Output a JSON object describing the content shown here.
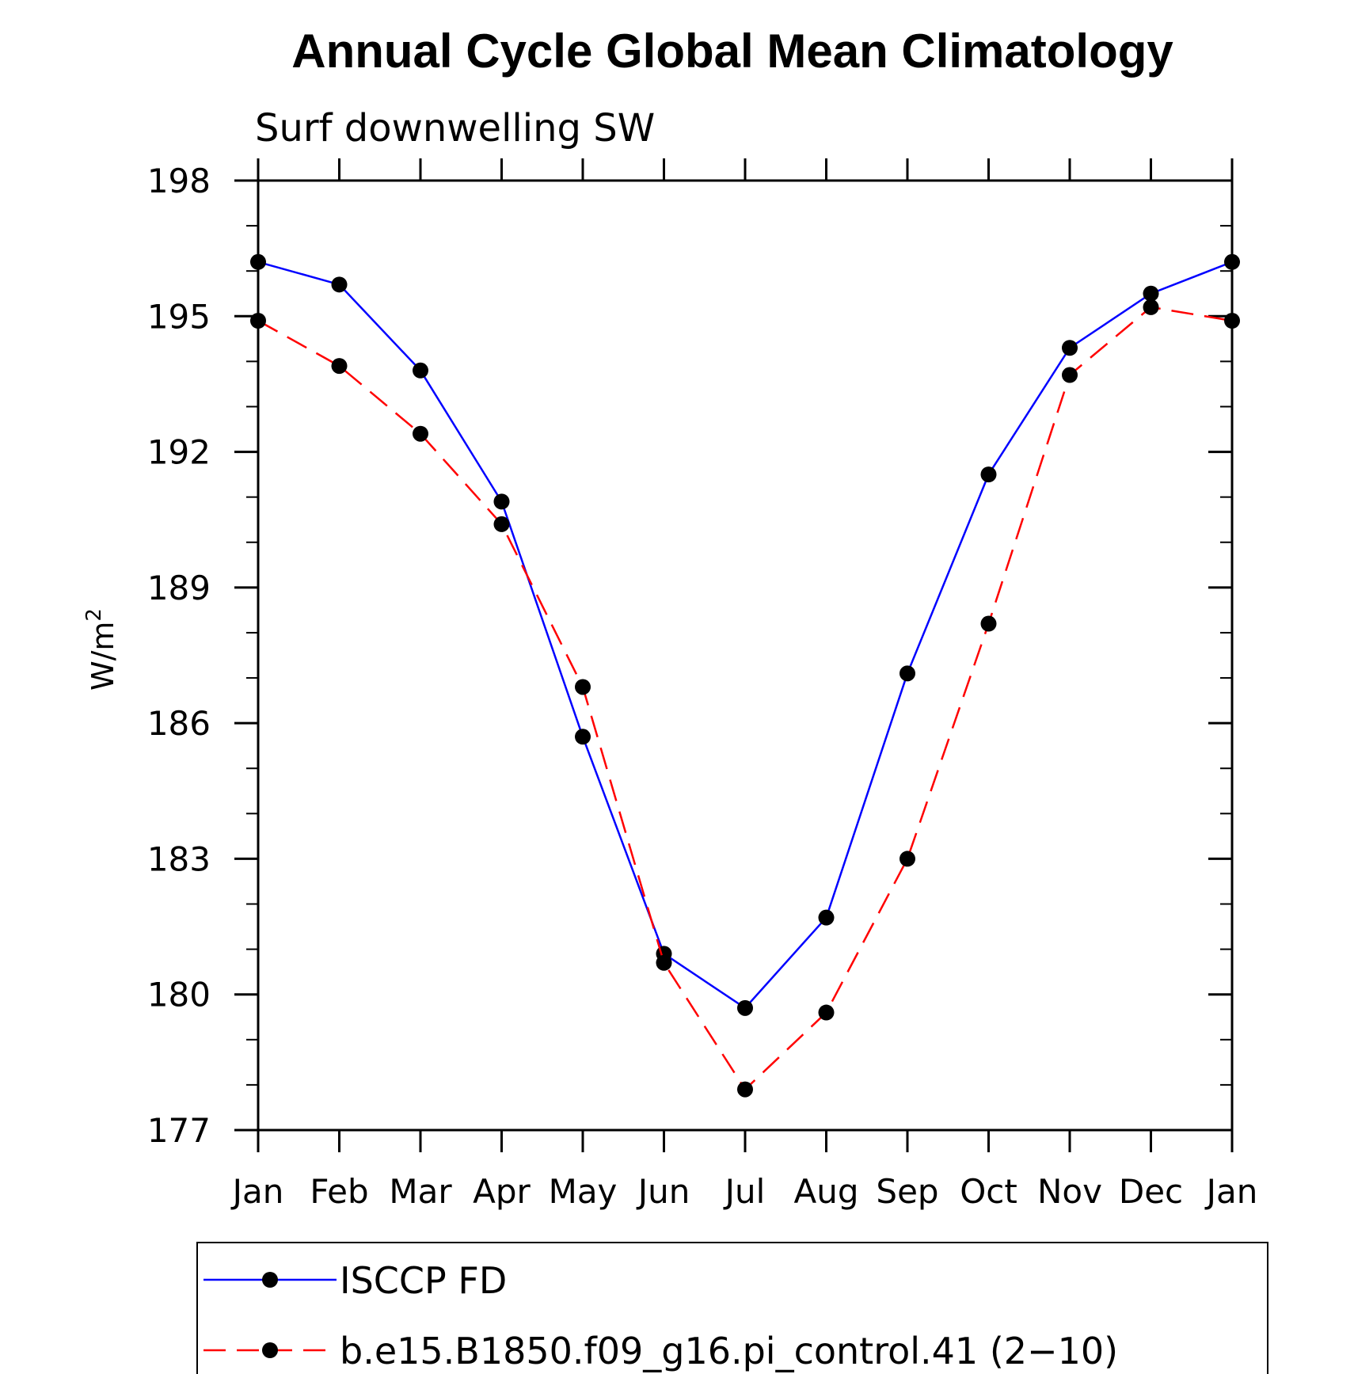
{
  "chart_data": {
    "type": "line",
    "title": "Annual Cycle Global Mean Climatology",
    "subtitle": "Surf downwelling SW",
    "xlabel": "",
    "ylabel_base": "W/m",
    "ylabel_sup": "2",
    "categories": [
      "Jan",
      "Feb",
      "Mar",
      "Apr",
      "May",
      "Jun",
      "Jul",
      "Aug",
      "Sep",
      "Oct",
      "Nov",
      "Dec",
      "Jan"
    ],
    "ylim": [
      177,
      198
    ],
    "yticks": [
      177,
      180,
      183,
      186,
      189,
      192,
      195,
      198
    ],
    "yminor_step": 1,
    "grid": false,
    "legend_position": "bottom",
    "series": [
      {
        "name": "ISCCP FD",
        "color": "#0000ff",
        "dash": "solid",
        "values": [
          196.2,
          195.7,
          193.8,
          190.9,
          185.7,
          180.9,
          179.7,
          181.7,
          187.1,
          191.5,
          194.3,
          195.5,
          196.2
        ]
      },
      {
        "name": "b.e15.B1850.f09_g16.pi_control.41 (2−10)",
        "color": "#ff0000",
        "dash": "dashed",
        "values": [
          194.9,
          193.9,
          192.4,
          190.4,
          186.8,
          180.7,
          177.9,
          179.6,
          183.0,
          188.2,
          193.7,
          195.2,
          194.9
        ]
      }
    ]
  }
}
